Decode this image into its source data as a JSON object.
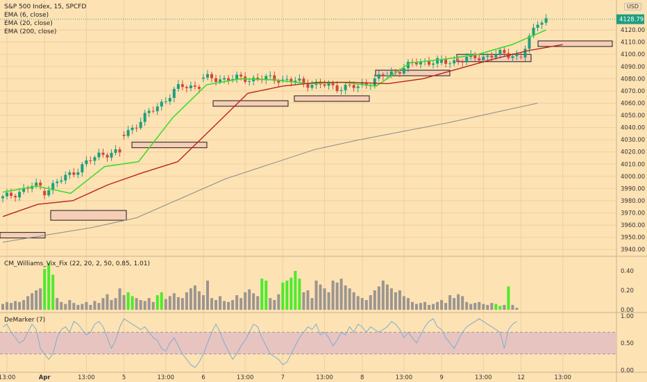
{
  "header": {
    "symbol_line": "S&P 500 Index, 15, SPCFD",
    "ema_labels": [
      "EMA (6, close)",
      "EMA (20, close)",
      "EMA (200, close)"
    ],
    "currency": "USD",
    "last_price": "4128.79"
  },
  "panes": {
    "vix_label": "CM_Williams_Vix_Fix (22, 20, 2, 50, 0.85, 1.01)",
    "demarker_label": "DeMarker (7)"
  },
  "colors": {
    "background": "#fde2b4",
    "up_candle": "#1e9e7e",
    "down_candle": "#d2473d",
    "ema6": "#3ddc2f",
    "ema20": "#b8231b",
    "ema200": "#8a8a8a",
    "vix_bar": "#9c9590",
    "vix_alert": "#4eea2c",
    "demarker_line": "#7aaecf",
    "demarker_band": "#e8c4c0",
    "zone_fill": "#f6cdb5"
  },
  "chart_data": [
    {
      "type": "candlestick",
      "title": "S&P 500 Index, 15, SPCFD",
      "ylim": [
        3935,
        4140
      ],
      "y_ticks": [
        3940,
        3950,
        3960,
        3970,
        3980,
        3990,
        4000,
        4010,
        4020,
        4030,
        4040,
        4050,
        4060,
        4070,
        4080,
        4090,
        4100,
        4110,
        4120
      ],
      "x_ticks": [
        "13:00",
        "Apr",
        "13:00",
        "5",
        "13:00",
        "6",
        "13:00",
        "7",
        "13:00",
        "8",
        "13:00",
        "9",
        "13:00",
        "12",
        "13:00"
      ],
      "x_tick_index": [
        1,
        10,
        20,
        29,
        39,
        48,
        58,
        67,
        77,
        86,
        96,
        105,
        115,
        124,
        134
      ],
      "session_closes": [
        3992,
        4019,
        4074,
        4080,
        4073,
        4094,
        4100,
        4128.79
      ],
      "session_opens": [
        3982,
        3988,
        4034,
        4080,
        4079,
        4075,
        4093,
        4098
      ],
      "series": [
        {
          "name": "EMA (6, close)",
          "values": [
            3987,
            3992,
            3986,
            4008,
            4012,
            4048,
            4075,
            4080,
            4079,
            4076,
            4077,
            4074,
            4093,
            4096,
            4100,
            4108,
            4120
          ]
        },
        {
          "name": "EMA (20, close)",
          "values": [
            3967,
            3977,
            3980,
            3993,
            4003,
            4012,
            4040,
            4068,
            4074,
            4077,
            4077,
            4076,
            4080,
            4088,
            4096,
            4103,
            4108
          ]
        },
        {
          "name": "EMA (200, close)",
          "values": [
            3946,
            3952,
            3958,
            3966,
            3982,
            3998,
            4010,
            4022,
            4030,
            4037,
            4044,
            4052,
            4060
          ]
        }
      ],
      "zones": [
        {
          "low": 3951,
          "high": 3954
        },
        {
          "low": 3964,
          "high": 3972
        },
        {
          "low": 4024,
          "high": 4028
        },
        {
          "low": 4058,
          "high": 4062
        },
        {
          "low": 4062,
          "high": 4066
        },
        {
          "low": 4083,
          "high": 4087
        },
        {
          "low": 4083,
          "high": 4090
        },
        {
          "low": 4094,
          "high": 4100
        },
        {
          "low": 4107,
          "high": 4111
        }
      ]
    },
    {
      "type": "bar",
      "title": "CM_Williams_Vix_Fix (22, 20, 2, 50, 0.85, 1.01)",
      "ylim": [
        0,
        0.5
      ],
      "y_ticks": [
        0.0,
        0.2,
        0.4
      ],
      "values": [
        0.06,
        0.08,
        0.07,
        0.09,
        0.08,
        0.1,
        0.14,
        0.17,
        0.2,
        0.22,
        0.42,
        0.48,
        0.36,
        0.12,
        0.08,
        0.06,
        0.1,
        0.07,
        0.05,
        0.06,
        0.08,
        0.05,
        0.09,
        0.07,
        0.12,
        0.16,
        0.1,
        0.12,
        0.22,
        0.15,
        0.18,
        0.14,
        0.12,
        0.1,
        0.09,
        0.12,
        0.08,
        0.15,
        0.18,
        0.11,
        0.14,
        0.17,
        0.13,
        0.12,
        0.18,
        0.22,
        0.25,
        0.19,
        0.15,
        0.3,
        0.12,
        0.1,
        0.14,
        0.09,
        0.08,
        0.1,
        0.15,
        0.12,
        0.18,
        0.21,
        0.17,
        0.14,
        0.32,
        0.3,
        0.12,
        0.1,
        0.16,
        0.28,
        0.3,
        0.33,
        0.4,
        0.32,
        0.18,
        0.2,
        0.12,
        0.3,
        0.26,
        0.22,
        0.18,
        0.3,
        0.28,
        0.32,
        0.25,
        0.22,
        0.18,
        0.14,
        0.12,
        0.1,
        0.15,
        0.2,
        0.24,
        0.3,
        0.26,
        0.22,
        0.18,
        0.2,
        0.14,
        0.12,
        0.08,
        0.06,
        0.07,
        0.08,
        0.05,
        0.06,
        0.08,
        0.1,
        0.07,
        0.15,
        0.12,
        0.16,
        0.14,
        0.08,
        0.06,
        0.07,
        0.08,
        0.06,
        0.05,
        0.07,
        0.06,
        0.04,
        0.05,
        0.24,
        0.05,
        0.02
      ],
      "alert_indices": [
        10,
        11,
        12,
        30,
        31,
        37,
        38,
        62,
        63,
        67,
        68,
        69,
        70,
        71,
        118,
        119,
        121
      ]
    },
    {
      "type": "line",
      "title": "DeMarker (7)",
      "ylim": [
        0,
        1
      ],
      "y_ticks": [
        0.0,
        0.5,
        1.0
      ],
      "bands": [
        0.3,
        0.7
      ],
      "values": [
        0.8,
        0.85,
        0.7,
        0.6,
        0.5,
        0.55,
        0.7,
        0.85,
        0.75,
        0.4,
        0.3,
        0.2,
        0.3,
        0.6,
        0.75,
        0.8,
        0.7,
        0.9,
        0.85,
        0.75,
        0.65,
        0.7,
        0.85,
        0.9,
        0.8,
        0.6,
        0.4,
        0.55,
        0.8,
        0.95,
        0.9,
        0.85,
        0.8,
        0.75,
        0.8,
        0.7,
        0.6,
        0.55,
        0.4,
        0.35,
        0.5,
        0.6,
        0.45,
        0.3,
        0.2,
        0.1,
        0.05,
        0.15,
        0.3,
        0.5,
        0.7,
        0.85,
        0.7,
        0.5,
        0.35,
        0.2,
        0.3,
        0.45,
        0.55,
        0.7,
        0.85,
        0.8,
        0.6,
        0.45,
        0.3,
        0.25,
        0.2,
        0.1,
        0.15,
        0.3,
        0.45,
        0.6,
        0.7,
        0.8,
        0.75,
        0.85,
        0.65,
        0.7,
        0.6,
        0.45,
        0.55,
        0.7,
        0.65,
        0.8,
        0.7,
        0.85,
        0.8,
        0.7,
        0.8,
        0.75,
        0.7,
        0.75,
        0.8,
        0.9,
        0.85,
        0.75,
        0.6,
        0.7,
        0.6,
        0.5,
        0.65,
        0.8,
        0.9,
        0.95,
        0.8,
        0.75,
        0.6,
        0.5,
        0.4,
        0.55,
        0.7,
        0.8,
        0.85,
        0.9,
        0.95,
        0.9,
        0.85,
        0.8,
        0.75,
        0.7,
        0.4,
        0.75,
        0.85,
        0.9
      ]
    }
  ]
}
